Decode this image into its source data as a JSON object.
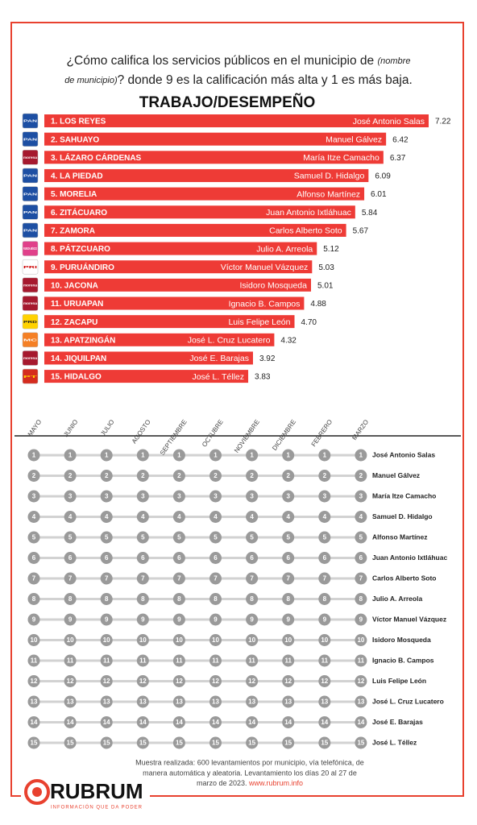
{
  "header": {
    "question_1": "¿Cómo califica los servicios públicos en el municipio de ",
    "question_note_1": "(nombre",
    "question_note_2": "de municipio)",
    "question_2": "? donde 9 es la calificación más alta y 1 es más baja."
  },
  "chart_data": [
    {
      "type": "bar",
      "title": "TRABAJO/DESEMPEÑO",
      "categories": [
        "1. LOS REYES",
        "2. SAHUAYO",
        "3. LÁZARO CÁRDENAS",
        "4. LA PIEDAD",
        "5. MORELIA",
        "6. ZITÁCUARO",
        "7. ZAMORA",
        "8. PÁTZCUARO",
        "9. PURUÁNDIRO",
        "10. JACONA",
        "11. URUAPAN",
        "12. ZACAPU",
        "13. APATZINGÁN",
        "14. JIQUILPAN",
        "15. HIDALGO"
      ],
      "mayors": [
        "José Antonio Salas",
        "Manuel Gálvez",
        "María Itze Camacho",
        "Samuel D. Hidalgo",
        "Alfonso Martínez",
        "Juan Antonio Ixtláhuac",
        "Carlos Alberto Soto",
        "Julio A. Arreola",
        "Víctor Manuel Vázquez",
        "Isidoro Mosqueda",
        "Ignacio B. Campos",
        "Luis Felipe León",
        "José L. Cruz Lucatero",
        "José E. Barajas",
        "José L. Téllez"
      ],
      "parties": [
        "PAN",
        "PAN",
        "morena",
        "PAN",
        "PAN",
        "PAN",
        "PAN",
        "FUERZA MÉXICO",
        "PRI",
        "morena",
        "morena",
        "PRD",
        "MC",
        "morena",
        "PT"
      ],
      "values": [
        7.22,
        6.42,
        6.37,
        6.09,
        6.01,
        5.84,
        5.67,
        5.12,
        5.03,
        5.01,
        4.88,
        4.7,
        4.32,
        3.92,
        3.83
      ],
      "value_labels": [
        "7.22",
        "6.42",
        "6.37",
        "6.09",
        "6.01",
        "5.84",
        "5.67",
        "5.12",
        "5.03",
        "5.01",
        "4.88",
        "4.70",
        "4.32",
        "3.92",
        "3.83"
      ],
      "color": "#ee3b36"
    },
    {
      "type": "bump",
      "x": [
        "MAYO",
        "JUNIO",
        "JULIO",
        "AGOSTO",
        "SEPTIEMBRE",
        "OCTUBRE",
        "NOVIEMBRE",
        "DICIEMBRE",
        "FEBRERO",
        "MARZO"
      ],
      "ranks": [
        1,
        2,
        3,
        4,
        5,
        6,
        7,
        8,
        9,
        10,
        11,
        12,
        13,
        14,
        15
      ],
      "names": [
        "José Antonio Salas",
        "Manuel Gálvez",
        "María Itze Camacho",
        "Samuel D. Hidalgo",
        "Alfonso Martínez",
        "Juan Antonio Ixtláhuac",
        "Carlos Alberto Soto",
        "Julio A. Arreola",
        "Víctor Manuel Vázquez",
        "Isidoro Mosqueda",
        "Ignacio B. Campos",
        "Luis Felipe León",
        "José L. Cruz Lucatero",
        "José E. Barajas",
        "José L. Téllez"
      ],
      "color": "#9a9a9a"
    }
  ],
  "footer": {
    "note_1": "Muestra realizada: 600 levantamientos por municipio, vía telefónica, de",
    "note_2": "manera automática y aleatoria. Levantamiento los días 20 al 27 de",
    "note_3": "marzo de 2023. ",
    "link": "www.rubrum.info",
    "logo": "RUBRUM",
    "tagline": "INFORMACIÓN QUE DA PODER"
  }
}
